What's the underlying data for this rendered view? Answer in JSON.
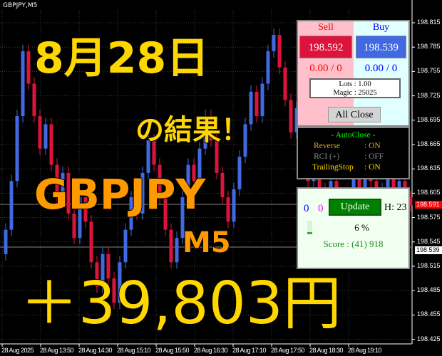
{
  "symbol_label": "GBPJPY,M5",
  "colors": {
    "bull": "#4169e1",
    "bear": "#dc143c",
    "grid": "#3a3a3a",
    "overlay_yellow": "#ffd700",
    "overlay_orange": "#ff9900"
  },
  "price_axis": [
    "198.815",
    "198.785",
    "198.755",
    "198.725",
    "198.695",
    "198.665",
    "198.635",
    "198.605",
    "198.575",
    "198.545",
    "198.515",
    "198.485",
    "198.455",
    "198.425"
  ],
  "time_axis": [
    "28 Aug 2025",
    "28 Aug 13:50",
    "28 Aug 14:30",
    "28 Aug 15:10",
    "28 Aug 15:50",
    "28 Aug 16:30",
    "28 Aug 17:10",
    "28 Aug 17:50",
    "28 Aug 18:30",
    "28 Aug 19:10"
  ],
  "bid_tag": "198.591",
  "ask_tag": "198.539",
  "chart_data": {
    "type": "candlestick",
    "first_open": 198.53,
    "closes": [
      198.56,
      198.62,
      198.7,
      198.78,
      198.74,
      198.7,
      198.66,
      198.69,
      198.64,
      198.6,
      198.63,
      198.58,
      198.55,
      198.6,
      198.57,
      198.52,
      198.49,
      198.53,
      198.5,
      198.47,
      198.52,
      198.56,
      198.6,
      198.58,
      198.63,
      198.67,
      198.64,
      198.6,
      198.56,
      198.52,
      198.55,
      198.6,
      198.64,
      198.62,
      198.66,
      198.7,
      198.67,
      198.63,
      198.6,
      198.57,
      198.61,
      198.65,
      198.69,
      198.73,
      198.7,
      198.74,
      198.78,
      198.8,
      198.76,
      198.72,
      198.68,
      198.71,
      198.66,
      198.62,
      198.65,
      198.61,
      198.58,
      198.62,
      198.6,
      198.57,
      198.6,
      198.63,
      198.61,
      198.64,
      198.62,
      198.59,
      198.61,
      198.63,
      198.6,
      198.62,
      198.6,
      198.59
    ],
    "ylim": [
      198.425,
      198.83
    ]
  },
  "panel": {
    "sell_label": "Sell",
    "buy_label": "Buy",
    "sell_price": "198.592",
    "buy_price": "198.539",
    "sell_pos": "0.00 / 0",
    "buy_pos": "0.00 / 0",
    "lots": "Lots   : 1.00",
    "magic": "Magic : 25025",
    "all_close": "All Close"
  },
  "autoclose": {
    "title": "- AutoClose -",
    "rows": [
      {
        "key": "Reverse",
        "value": ": ON"
      },
      {
        "key": "RCI  (+)",
        "value": ": OFF"
      },
      {
        "key": "TrailingStop",
        "value": ": ON"
      }
    ]
  },
  "status": {
    "count_blue": "0",
    "count_magenta": "0",
    "update": "Update",
    "hour": "H: 23",
    "progress_text": "6 %",
    "progress": 6,
    "score": "Score : (41) 918"
  },
  "overlay": {
    "date": "8月28日",
    "result": "の結果！",
    "pair": "GBPJPY",
    "tf": "M5",
    "profit": "＋39,803円"
  }
}
